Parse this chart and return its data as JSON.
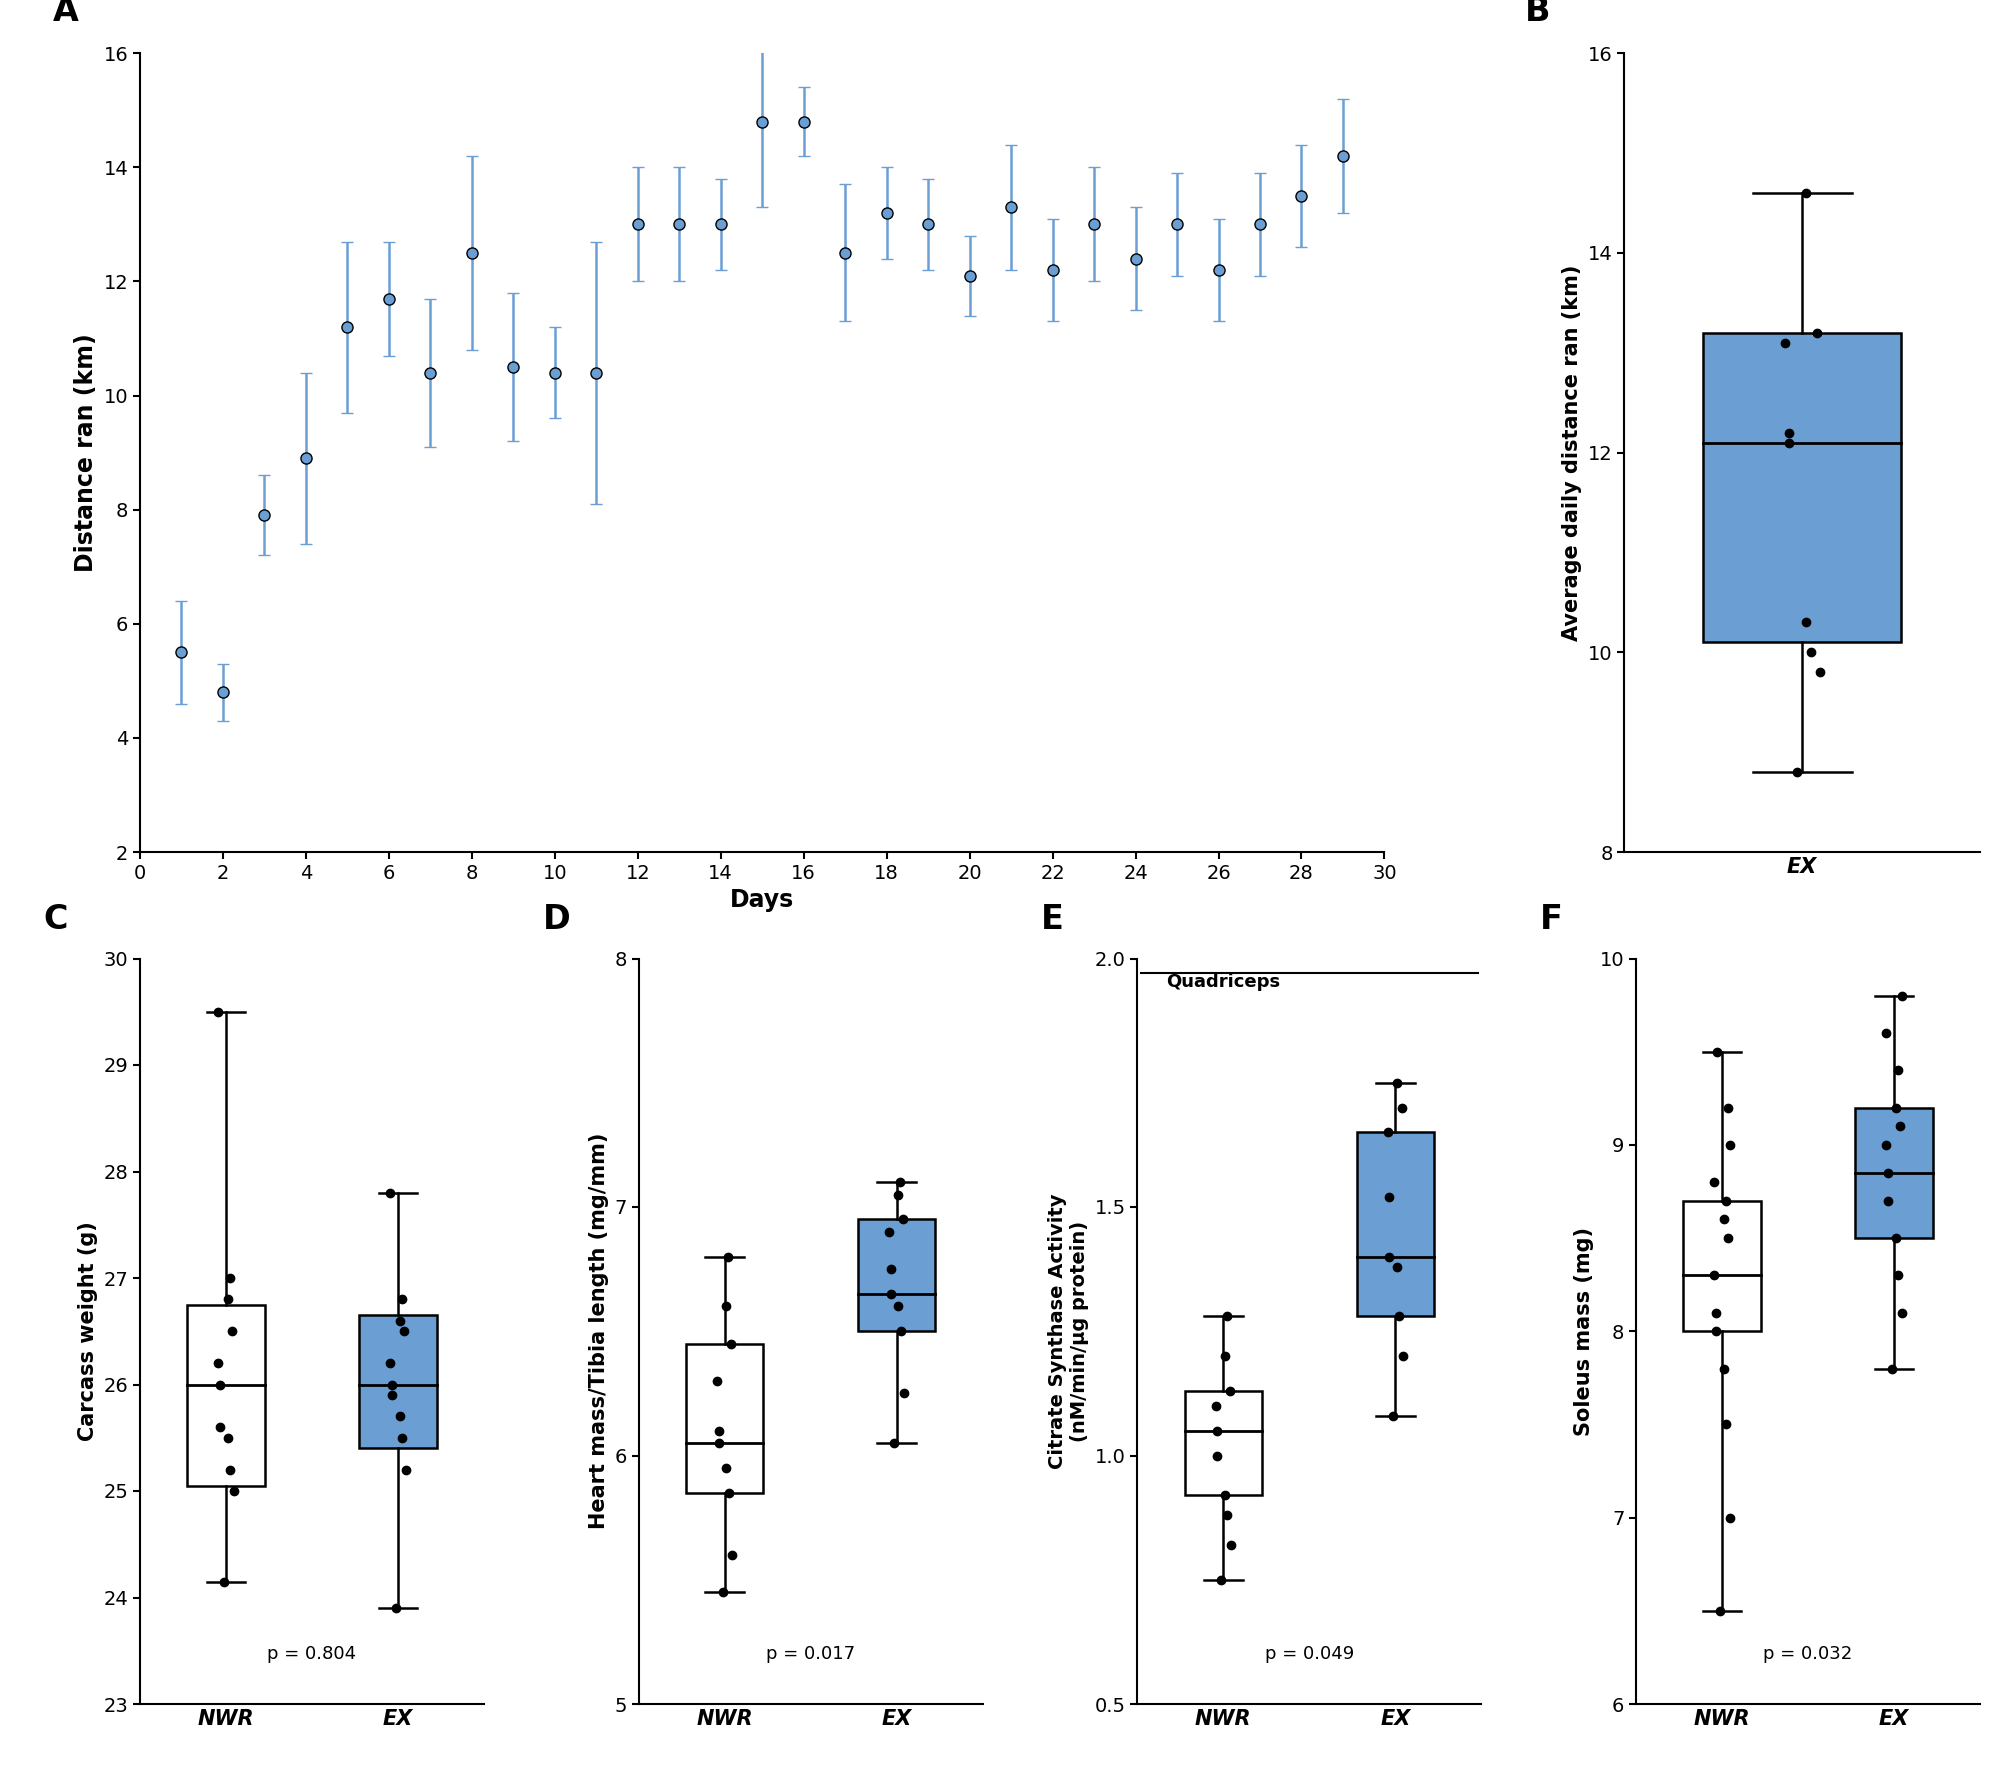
{
  "panel_A": {
    "days": [
      1,
      2,
      3,
      4,
      5,
      6,
      7,
      8,
      9,
      10,
      11,
      12,
      13,
      14,
      15,
      16,
      17,
      18,
      19,
      20,
      21,
      22,
      23,
      24,
      25,
      26,
      27,
      28,
      29
    ],
    "means": [
      5.5,
      4.8,
      7.9,
      8.9,
      11.2,
      11.7,
      10.4,
      12.5,
      10.5,
      10.4,
      10.4,
      13.0,
      13.0,
      13.0,
      14.8,
      14.8,
      12.5,
      13.2,
      13.0,
      12.1,
      13.3,
      12.2,
      13.0,
      12.4,
      13.0,
      12.2,
      13.0,
      13.5,
      14.2
    ],
    "errors": [
      0.9,
      0.5,
      0.7,
      1.5,
      1.5,
      1.0,
      1.3,
      1.7,
      1.3,
      0.8,
      2.3,
      1.0,
      1.0,
      0.8,
      1.5,
      0.6,
      1.2,
      0.8,
      0.8,
      0.7,
      1.1,
      0.9,
      1.0,
      0.9,
      0.9,
      0.9,
      0.9,
      0.9,
      1.0
    ],
    "xlabel": "Days",
    "ylabel": "Distance ran (km)",
    "ylim": [
      2,
      16
    ],
    "xlim": [
      0,
      30
    ],
    "yticks": [
      2,
      4,
      6,
      8,
      10,
      12,
      14,
      16
    ],
    "xticks": [
      0,
      2,
      4,
      6,
      8,
      10,
      12,
      14,
      16,
      18,
      20,
      22,
      24,
      26,
      28,
      30
    ]
  },
  "panel_B": {
    "EX": {
      "median": 12.1,
      "q1": 10.1,
      "q3": 13.2,
      "whisker_low": 8.8,
      "whisker_high": 14.6,
      "points": [
        8.8,
        9.8,
        10.0,
        10.3,
        12.1,
        12.2,
        13.1,
        13.2,
        14.6
      ]
    },
    "ylabel": "Average daily distance ran (km)",
    "ylim": [
      8,
      16
    ],
    "yticks": [
      8,
      10,
      12,
      14,
      16
    ]
  },
  "panel_C": {
    "NWR": {
      "median": 26.0,
      "q1": 25.05,
      "q3": 26.75,
      "whisker_low": 24.15,
      "whisker_high": 29.5,
      "points": [
        24.15,
        25.0,
        25.2,
        25.5,
        25.6,
        26.0,
        26.2,
        26.5,
        26.8,
        27.0,
        29.5
      ]
    },
    "EX": {
      "median": 26.0,
      "q1": 25.4,
      "q3": 26.65,
      "whisker_low": 23.9,
      "whisker_high": 27.8,
      "points": [
        23.9,
        25.2,
        25.5,
        25.7,
        25.9,
        26.0,
        26.2,
        26.5,
        26.6,
        26.8,
        27.8
      ]
    },
    "ylabel": "Carcass weight (g)",
    "ylim": [
      23,
      30
    ],
    "yticks": [
      23,
      24,
      25,
      26,
      27,
      28,
      29,
      30
    ],
    "pvalue": "p = 0.804"
  },
  "panel_D": {
    "NWR": {
      "median": 6.05,
      "q1": 5.85,
      "q3": 6.45,
      "whisker_low": 5.45,
      "whisker_high": 6.8,
      "points": [
        5.45,
        5.6,
        5.85,
        5.95,
        6.05,
        6.1,
        6.3,
        6.45,
        6.6,
        6.8
      ]
    },
    "EX": {
      "median": 6.65,
      "q1": 6.5,
      "q3": 6.95,
      "whisker_low": 6.05,
      "whisker_high": 7.1,
      "points": [
        6.05,
        6.25,
        6.5,
        6.6,
        6.65,
        6.75,
        6.9,
        6.95,
        7.05,
        7.1
      ]
    },
    "ylabel": "Heart mass/Tibia length (mg/mm)",
    "ylim": [
      5,
      8
    ],
    "yticks": [
      5,
      6,
      7,
      8
    ],
    "pvalue": "p = 0.017"
  },
  "panel_E": {
    "NWR": {
      "median": 1.05,
      "q1": 0.92,
      "q3": 1.13,
      "whisker_low": 0.75,
      "whisker_high": 1.28,
      "points": [
        0.75,
        0.82,
        0.88,
        0.92,
        1.0,
        1.05,
        1.1,
        1.13,
        1.2,
        1.28
      ]
    },
    "EX": {
      "median": 1.4,
      "q1": 1.28,
      "q3": 1.65,
      "whisker_low": 1.08,
      "whisker_high": 1.75,
      "points": [
        1.08,
        1.2,
        1.28,
        1.38,
        1.4,
        1.52,
        1.65,
        1.7,
        1.75
      ]
    },
    "ylabel": "Citrate Synthase Activity\n(nM/min/µg protein)",
    "ylim": [
      0.5,
      2.0
    ],
    "yticks": [
      0.5,
      1.0,
      1.5,
      2.0
    ],
    "pvalue": "p = 0.049",
    "annotation": "Quadriceps"
  },
  "panel_F": {
    "NWR": {
      "median": 8.3,
      "q1": 8.0,
      "q3": 8.7,
      "whisker_low": 6.5,
      "whisker_high": 9.5,
      "points": [
        6.5,
        7.0,
        7.5,
        7.8,
        8.0,
        8.1,
        8.3,
        8.5,
        8.6,
        8.7,
        8.8,
        9.0,
        9.2,
        9.5
      ]
    },
    "EX": {
      "median": 8.85,
      "q1": 8.5,
      "q3": 9.2,
      "whisker_low": 7.8,
      "whisker_high": 9.8,
      "points": [
        7.8,
        8.1,
        8.3,
        8.5,
        8.7,
        8.85,
        9.0,
        9.1,
        9.2,
        9.4,
        9.6,
        9.8
      ]
    },
    "ylabel": "Soleus mass (mg)",
    "ylim": [
      6,
      10
    ],
    "yticks": [
      6,
      7,
      8,
      9,
      10
    ],
    "pvalue": "p = 0.032"
  },
  "colors": {
    "line_color": "#6B9FD4",
    "box_NWR": "#ffffff",
    "box_EX": "#6B9FD4",
    "dot_color": "#000000"
  }
}
